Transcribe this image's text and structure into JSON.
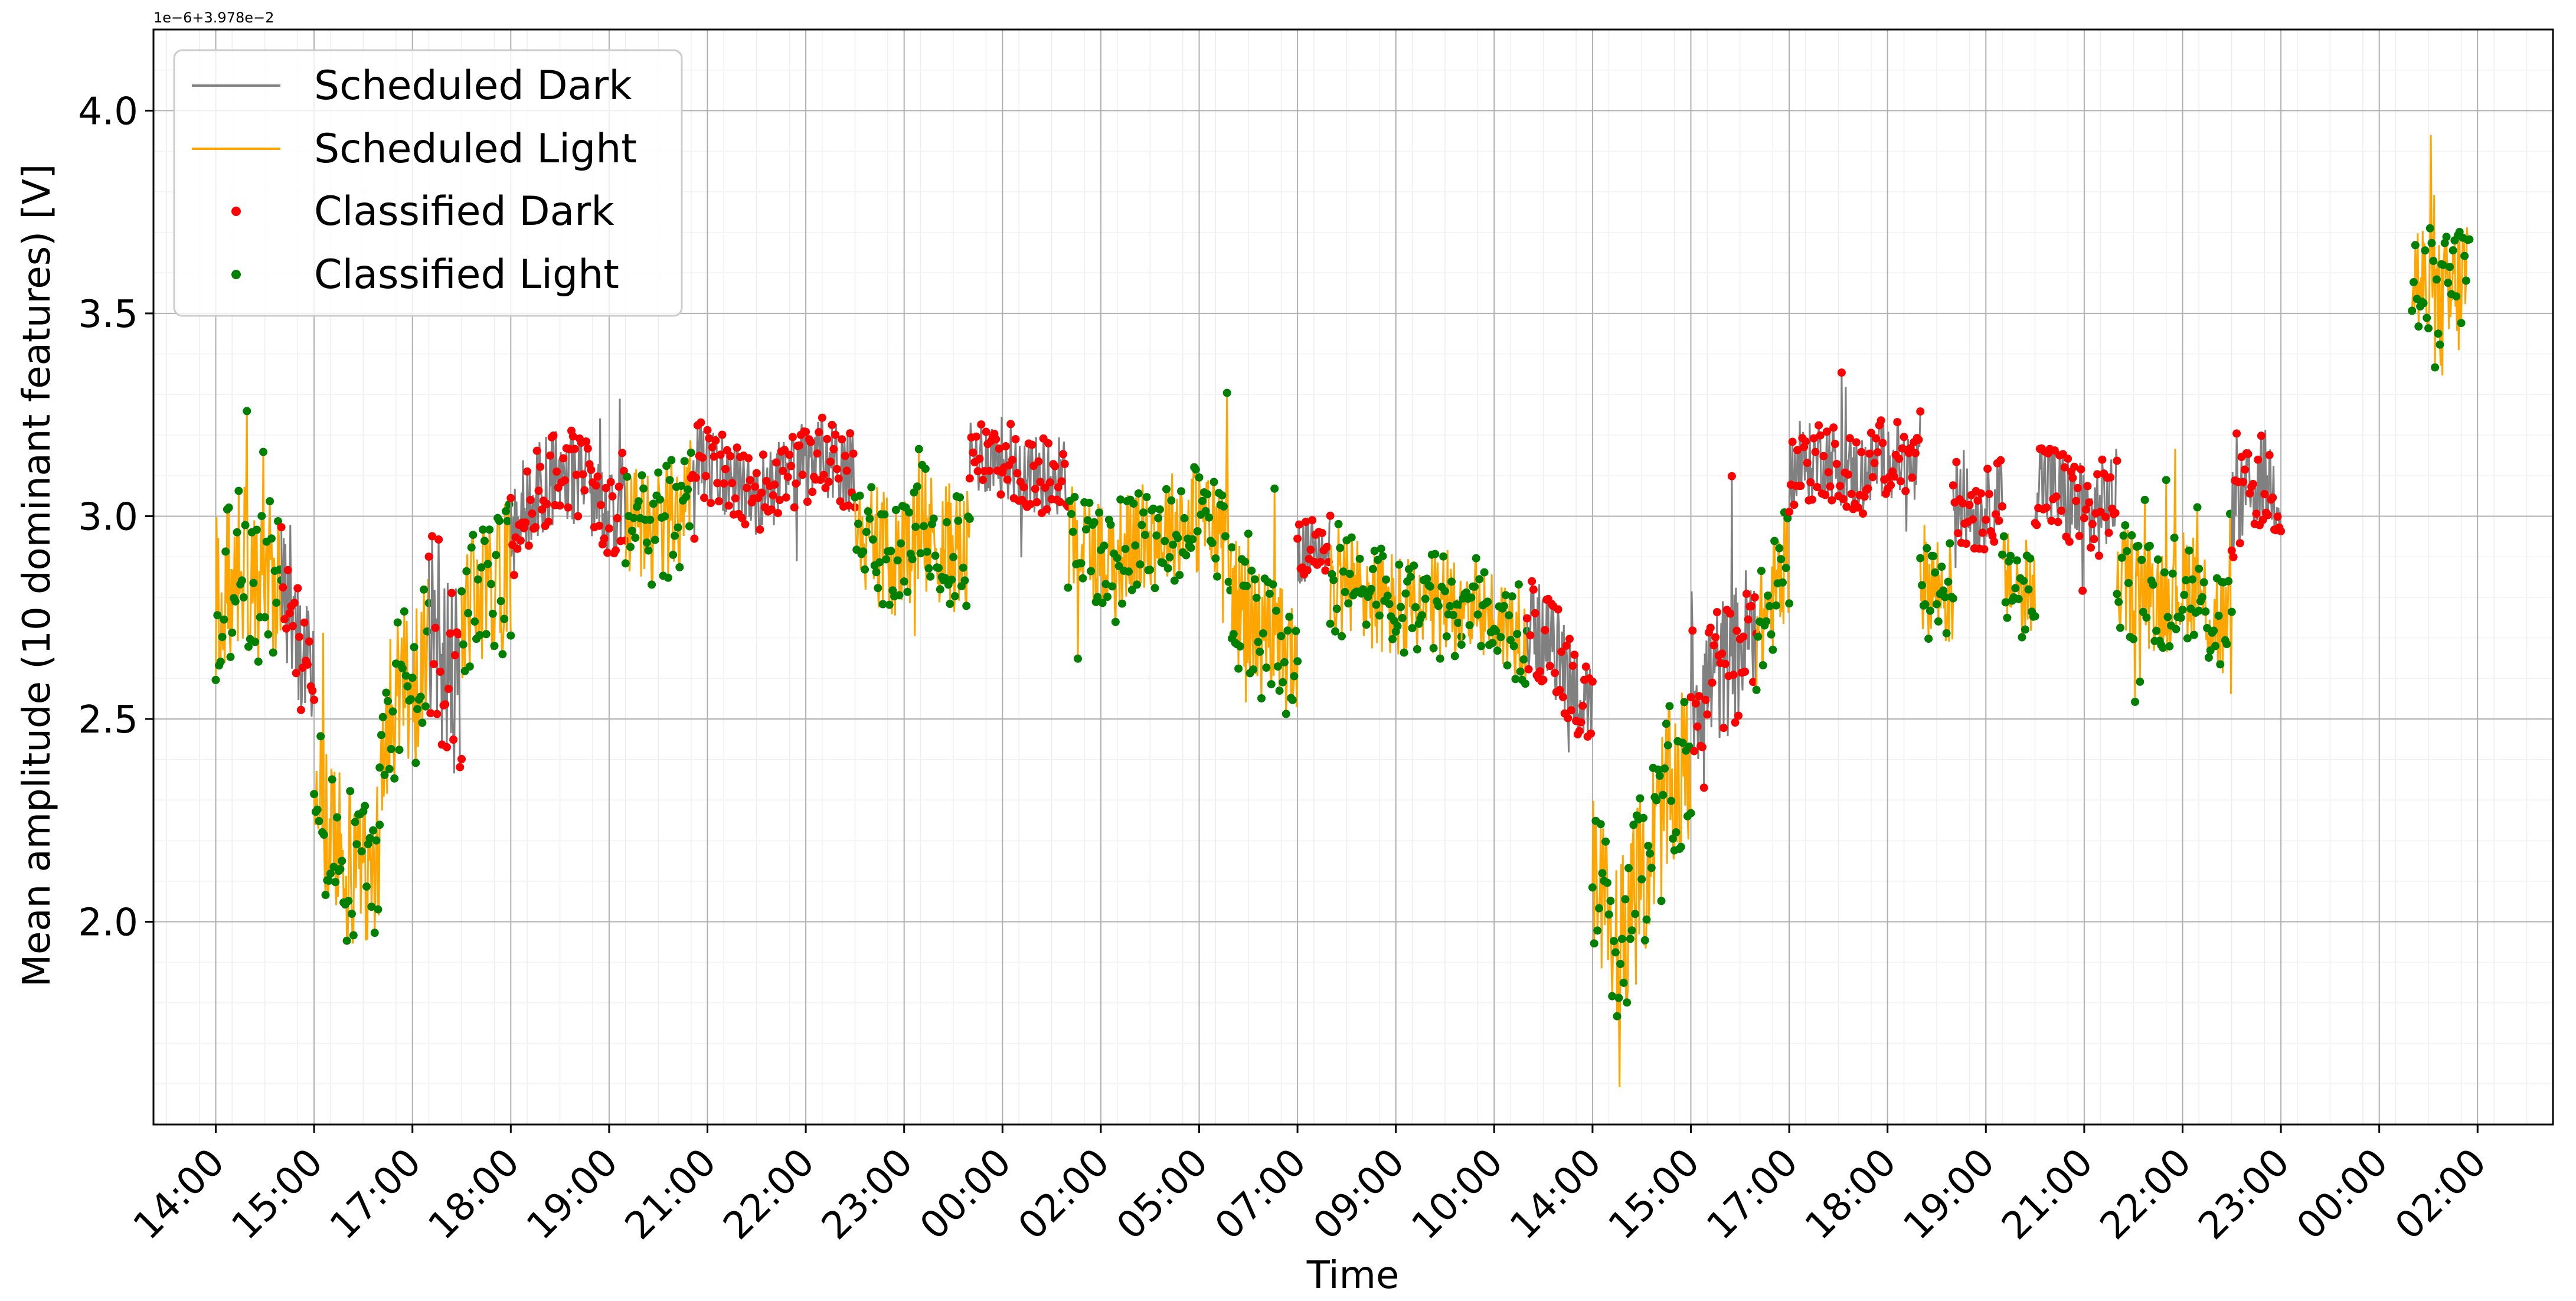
{
  "chart_data": {
    "type": "line",
    "title": "",
    "xlabel": "Time",
    "ylabel": "Mean amplitude (10 dominant features) [V]",
    "offset_label": "1e−6+3.978e−2",
    "ylim": [
      1.5,
      4.2
    ],
    "xlim": [
      -38,
      1426
    ],
    "yticks": [
      2.0,
      2.5,
      3.0,
      3.5,
      4.0
    ],
    "ytick_labels": [
      "2.0",
      "2.5",
      "3.0",
      "3.5",
      "4.0"
    ],
    "x_unit": "minutes from 14:00 on day 1",
    "xticks": [
      {
        "label": "14:00",
        "x": 0
      },
      {
        "label": "15:00",
        "x": 60
      },
      {
        "label": "17:00",
        "x": 120
      },
      {
        "label": "18:00",
        "x": 180
      },
      {
        "label": "19:00",
        "x": 240
      },
      {
        "label": "21:00",
        "x": 300
      },
      {
        "label": "22:00",
        "x": 360
      },
      {
        "label": "23:00",
        "x": 420
      },
      {
        "label": "00:00",
        "x": 480
      },
      {
        "label": "02:00",
        "x": 540
      },
      {
        "label": "05:00",
        "x": 600
      },
      {
        "label": "07:00",
        "x": 660
      },
      {
        "label": "09:00",
        "x": 720
      },
      {
        "label": "10:00",
        "x": 780
      },
      {
        "label": "14:00",
        "x": 840
      },
      {
        "label": "15:00",
        "x": 900
      },
      {
        "label": "17:00",
        "x": 960
      },
      {
        "label": "18:00",
        "x": 1020
      },
      {
        "label": "19:00",
        "x": 1080
      },
      {
        "label": "21:00",
        "x": 1140
      },
      {
        "label": "22:00",
        "x": 1200
      },
      {
        "label": "23:00",
        "x": 1260
      },
      {
        "label": "00:00",
        "x": 1320
      },
      {
        "label": "02:00",
        "x": 1380
      }
    ],
    "grid": true,
    "legend": {
      "position": "top-left",
      "entries": [
        {
          "label": "Scheduled Dark",
          "marker": "line",
          "color": "#808080"
        },
        {
          "label": "Scheduled Light",
          "marker": "line",
          "color": "#ffa500"
        },
        {
          "label": "Classified Dark",
          "marker": "dot",
          "color": "#ff0000"
        },
        {
          "label": "Classified Light",
          "marker": "dot",
          "color": "#008000"
        }
      ]
    },
    "segments": [
      {
        "x0": 0,
        "x1": 40,
        "class": "light",
        "y": [
          2.8,
          2.8,
          2.85,
          2.9,
          2.75,
          2.95,
          2.85,
          2.8
        ],
        "amp": 0.22
      },
      {
        "x0": 40,
        "x1": 60,
        "class": "dark",
        "y": [
          2.85,
          2.7,
          2.65,
          2.6
        ],
        "amp": 0.15
      },
      {
        "x0": 60,
        "x1": 100,
        "class": "light",
        "y": [
          2.4,
          2.2,
          2.15,
          2.1,
          2.2
        ],
        "amp": 0.2
      },
      {
        "x0": 100,
        "x1": 130,
        "class": "light",
        "y": [
          2.45,
          2.55,
          2.6,
          2.65
        ],
        "amp": 0.2
      },
      {
        "x0": 130,
        "x1": 150,
        "class": "dark",
        "y": [
          2.75,
          2.7,
          2.6,
          2.55
        ],
        "amp": 0.25
      },
      {
        "x0": 150,
        "x1": 180,
        "class": "light",
        "y": [
          2.75,
          2.8,
          2.85,
          2.85
        ],
        "amp": 0.18
      },
      {
        "x0": 180,
        "x1": 250,
        "class": "dark",
        "y": [
          3.0,
          3.05,
          3.1,
          3.1,
          3.0,
          3.05
        ],
        "amp": 0.12
      },
      {
        "x0": 250,
        "x1": 290,
        "class": "light",
        "y": [
          3.0,
          2.95,
          3.0,
          3.05
        ],
        "amp": 0.15
      },
      {
        "x0": 290,
        "x1": 390,
        "class": "dark",
        "y": [
          3.15,
          3.1,
          3.05,
          3.1,
          3.15,
          3.1
        ],
        "amp": 0.1
      },
      {
        "x0": 390,
        "x1": 460,
        "class": "light",
        "y": [
          2.95,
          2.9,
          2.95,
          2.9
        ],
        "amp": 0.16
      },
      {
        "x0": 460,
        "x1": 520,
        "class": "dark",
        "y": [
          3.15,
          3.15,
          3.1,
          3.1
        ],
        "amp": 0.1
      },
      {
        "x0": 520,
        "x1": 620,
        "class": "light",
        "y": [
          2.95,
          2.9,
          2.95,
          3.0,
          2.95
        ],
        "amp": 0.14
      },
      {
        "x0": 620,
        "x1": 660,
        "class": "light",
        "y": [
          2.8,
          2.7,
          2.65
        ],
        "amp": 0.16
      },
      {
        "x0": 660,
        "x1": 680,
        "class": "dark",
        "y": [
          2.9,
          2.95
        ],
        "amp": 0.08
      },
      {
        "x0": 680,
        "x1": 760,
        "class": "light",
        "y": [
          2.85,
          2.8,
          2.75,
          2.8
        ],
        "amp": 0.14
      },
      {
        "x0": 760,
        "x1": 800,
        "class": "light",
        "y": [
          2.8,
          2.75,
          2.7
        ],
        "amp": 0.12
      },
      {
        "x0": 800,
        "x1": 840,
        "class": "dark",
        "y": [
          2.75,
          2.65,
          2.5
        ],
        "amp": 0.12
      },
      {
        "x0": 840,
        "x1": 900,
        "class": "light",
        "y": [
          2.1,
          1.95,
          2.1,
          2.3,
          2.4
        ],
        "amp": 0.22
      },
      {
        "x0": 900,
        "x1": 940,
        "class": "dark",
        "y": [
          2.55,
          2.6,
          2.65,
          2.75
        ],
        "amp": 0.18
      },
      {
        "x0": 940,
        "x1": 960,
        "class": "light",
        "y": [
          2.7,
          2.8,
          2.9
        ],
        "amp": 0.14
      },
      {
        "x0": 960,
        "x1": 1040,
        "class": "dark",
        "y": [
          3.1,
          3.15,
          3.1,
          3.15,
          3.1
        ],
        "amp": 0.1
      },
      {
        "x0": 1040,
        "x1": 1060,
        "class": "light",
        "y": [
          2.85,
          2.8
        ],
        "amp": 0.14
      },
      {
        "x0": 1060,
        "x1": 1090,
        "class": "dark",
        "y": [
          3.05,
          3.0,
          3.05
        ],
        "amp": 0.1
      },
      {
        "x0": 1090,
        "x1": 1110,
        "class": "light",
        "y": [
          2.85,
          2.8
        ],
        "amp": 0.12
      },
      {
        "x0": 1110,
        "x1": 1160,
        "class": "dark",
        "y": [
          3.1,
          3.05,
          3.0,
          3.05
        ],
        "amp": 0.12
      },
      {
        "x0": 1160,
        "x1": 1210,
        "class": "light",
        "y": [
          2.85,
          2.8,
          2.85
        ],
        "amp": 0.14
      },
      {
        "x0": 1210,
        "x1": 1230,
        "class": "light",
        "y": [
          2.8,
          2.75,
          2.7
        ],
        "amp": 0.15
      },
      {
        "x0": 1230,
        "x1": 1260,
        "class": "dark",
        "y": [
          3.0,
          3.05,
          3.1,
          3.05
        ],
        "amp": 0.12
      },
      {
        "x0": 1340,
        "x1": 1375,
        "class": "light",
        "y": [
          3.6,
          3.55,
          3.5,
          3.55,
          3.6
        ],
        "amp": 0.18
      }
    ]
  }
}
